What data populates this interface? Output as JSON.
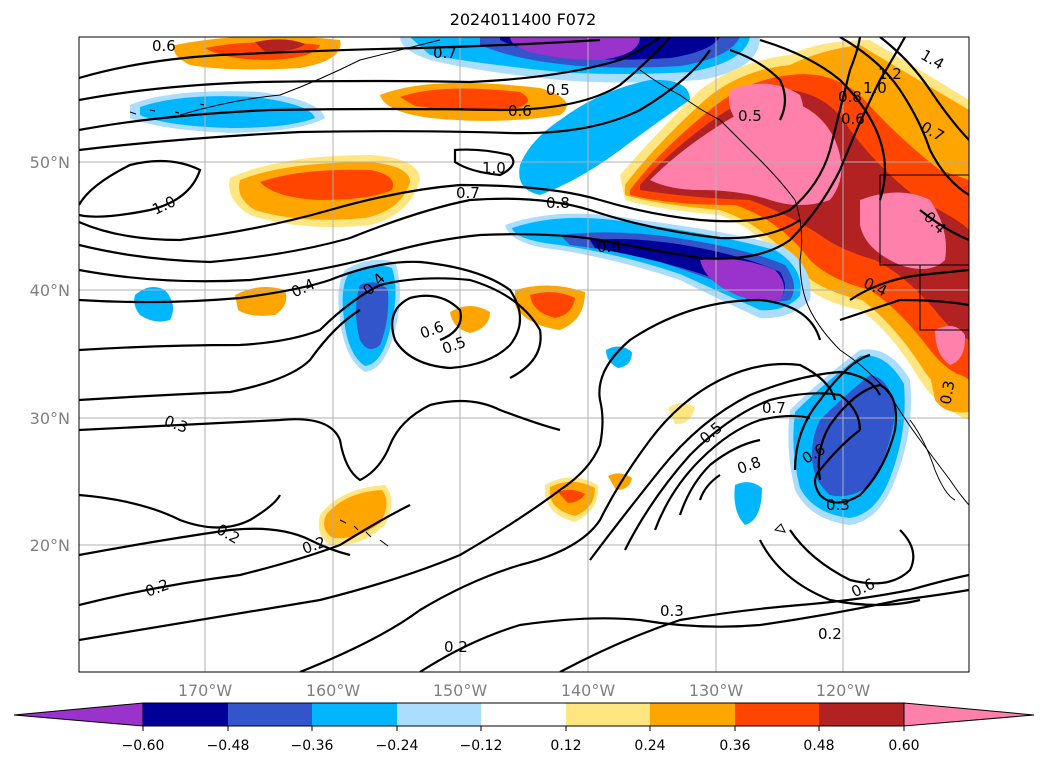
{
  "title": "2024011400 F072",
  "lon_ticks": [
    "170°W",
    "160°W",
    "150°W",
    "140°W",
    "130°W",
    "120°W"
  ],
  "lat_ticks": [
    "50°N",
    "40°N",
    "30°N",
    "20°N"
  ],
  "colorbar": {
    "ticks": [
      "−0.60",
      "−0.48",
      "−0.36",
      "−0.24",
      "−0.12",
      "0.12",
      "0.24",
      "0.36",
      "0.48",
      "0.60"
    ],
    "colors": [
      "#9933cc",
      "#000099",
      "#3355cc",
      "#00b7ff",
      "#aaddff",
      "#ffffff",
      "#ffe680",
      "#ffa500",
      "#ff4500",
      "#b22222",
      "#ff80aa"
    ]
  },
  "contour_labels": [
    "0.6",
    "0.7",
    "0.5",
    "0.6",
    "1.2",
    "1.4",
    "1.0",
    "0.8",
    "0.6",
    "0.5",
    "0.7",
    "1.0",
    "0.7",
    "0.8",
    "1.0",
    "0.6",
    "0.4",
    "0.4",
    "0.4",
    "0.6",
    "0.5",
    "0.4",
    "0.3",
    "0.3",
    "0.5",
    "0.7",
    "0.8",
    "0.6",
    "0.3",
    "0.2",
    "0.2",
    "0.2",
    "0.6",
    "0.3",
    "0.2",
    "0.2"
  ]
}
